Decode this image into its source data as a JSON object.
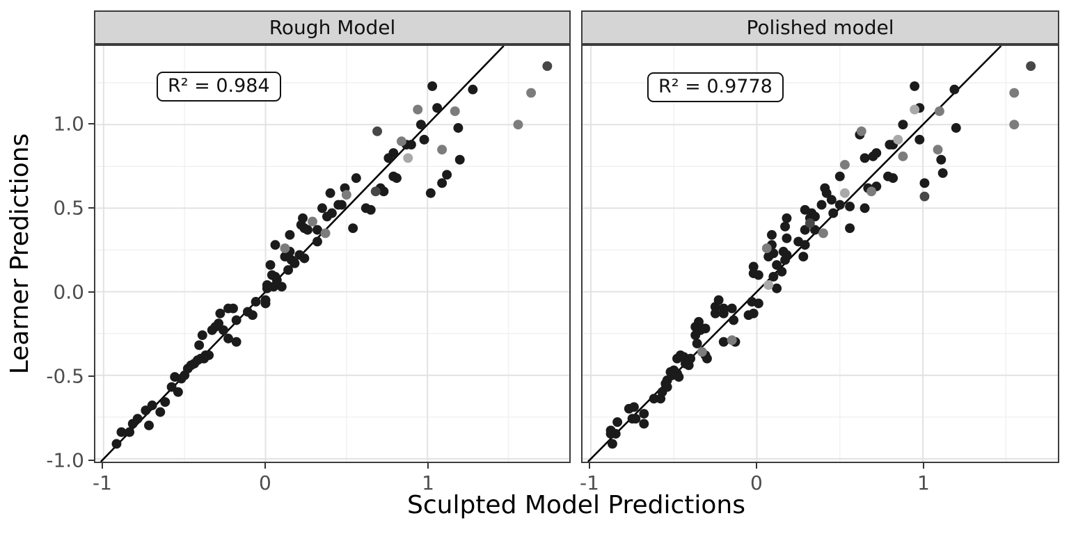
{
  "figure": {
    "x_axis_title": "Sculpted Model Predictions",
    "y_axis_title": "Learner Predictions"
  },
  "chart_data": [
    {
      "type": "scatter",
      "facet": "Rough Model",
      "annotation": "R² = 0.984",
      "xlabel": "Sculpted Model Predictions",
      "ylabel": "Learner Predictions",
      "xlim": [
        -1.051,
        1.876
      ],
      "ylim": [
        -1.017,
        1.471
      ],
      "x_tick_values": [
        -1,
        0,
        1
      ],
      "x_tick_labels": [
        "-1",
        "0",
        "1"
      ],
      "y_tick_values": [
        -1.0,
        -0.5,
        0.0,
        0.5,
        1.0
      ],
      "y_tick_labels": [
        "-1.0",
        "-0.5",
        "0.0",
        "0.5",
        "1.0"
      ],
      "x_minor": [
        -0.5,
        0.5,
        1.5
      ],
      "y_minor": [
        -0.75,
        -0.25,
        0.25,
        0.75,
        1.25
      ],
      "identity_line": {
        "slope": 1,
        "intercept": 0
      },
      "grid": true,
      "series": [
        {
          "name": "black-points",
          "color": "#1b1b1b",
          "points": [
            [
              -0.92,
              -0.91
            ],
            [
              -0.89,
              -0.84
            ],
            [
              -0.84,
              -0.84
            ],
            [
              -0.82,
              -0.79
            ],
            [
              -0.79,
              -0.76
            ],
            [
              -0.72,
              -0.8
            ],
            [
              -0.74,
              -0.71
            ],
            [
              -0.7,
              -0.68
            ],
            [
              -0.65,
              -0.72
            ],
            [
              -0.62,
              -0.66
            ],
            [
              -0.58,
              -0.57
            ],
            [
              -0.56,
              -0.51
            ],
            [
              -0.54,
              -0.6
            ],
            [
              -0.52,
              -0.52
            ],
            [
              -0.5,
              -0.5
            ],
            [
              -0.48,
              -0.46
            ],
            [
              -0.46,
              -0.44
            ],
            [
              -0.44,
              -0.43
            ],
            [
              -0.42,
              -0.41
            ],
            [
              -0.4,
              -0.4
            ],
            [
              -0.38,
              -0.4
            ],
            [
              -0.37,
              -0.38
            ],
            [
              -0.35,
              -0.38
            ],
            [
              -0.41,
              -0.32
            ],
            [
              -0.39,
              -0.26
            ],
            [
              -0.33,
              -0.23
            ],
            [
              -0.31,
              -0.21
            ],
            [
              -0.29,
              -0.19
            ],
            [
              -0.28,
              -0.13
            ],
            [
              -0.26,
              -0.23
            ],
            [
              -0.23,
              -0.28
            ],
            [
              -0.18,
              -0.3
            ],
            [
              -0.23,
              -0.1
            ],
            [
              -0.2,
              -0.1
            ],
            [
              -0.18,
              -0.17
            ],
            [
              -0.11,
              -0.12
            ],
            [
              -0.08,
              -0.14
            ],
            [
              -0.06,
              -0.06
            ],
            [
              0.0,
              -0.07
            ],
            [
              0.0,
              -0.05
            ],
            [
              0.01,
              0.02
            ],
            [
              0.01,
              0.04
            ],
            [
              0.05,
              0.03
            ],
            [
              0.1,
              0.03
            ],
            [
              0.04,
              0.1
            ],
            [
              0.06,
              0.09
            ],
            [
              0.07,
              0.07
            ],
            [
              0.03,
              0.16
            ],
            [
              0.14,
              0.13
            ],
            [
              0.18,
              0.17
            ],
            [
              0.16,
              0.19
            ],
            [
              0.15,
              0.24
            ],
            [
              0.12,
              0.21
            ],
            [
              0.21,
              0.22
            ],
            [
              0.24,
              0.2
            ],
            [
              0.06,
              0.28
            ],
            [
              0.15,
              0.34
            ],
            [
              0.22,
              0.4
            ],
            [
              0.23,
              0.44
            ],
            [
              0.24,
              0.38
            ],
            [
              0.26,
              0.37
            ],
            [
              0.32,
              0.37
            ],
            [
              0.32,
              0.3
            ],
            [
              0.35,
              0.5
            ],
            [
              0.38,
              0.45
            ],
            [
              0.41,
              0.47
            ],
            [
              0.45,
              0.52
            ],
            [
              0.47,
              0.52
            ],
            [
              0.4,
              0.59
            ],
            [
              0.49,
              0.62
            ],
            [
              0.54,
              0.38
            ],
            [
              0.56,
              0.68
            ],
            [
              0.62,
              0.5
            ],
            [
              0.65,
              0.49
            ],
            [
              0.71,
              0.62
            ],
            [
              0.73,
              0.6
            ],
            [
              0.79,
              0.69
            ],
            [
              0.81,
              0.68
            ],
            [
              0.76,
              0.8
            ],
            [
              0.79,
              0.83
            ],
            [
              0.87,
              0.88
            ],
            [
              0.9,
              0.88
            ],
            [
              0.96,
              1.0
            ],
            [
              0.98,
              0.91
            ],
            [
              1.02,
              0.59
            ],
            [
              1.03,
              1.23
            ],
            [
              1.06,
              1.1
            ],
            [
              1.09,
              0.65
            ],
            [
              1.12,
              0.7
            ],
            [
              1.19,
              0.98
            ],
            [
              1.2,
              0.79
            ],
            [
              1.28,
              1.21
            ]
          ]
        },
        {
          "name": "gray-points",
          "color": "#7c7c7c",
          "points": [
            [
              0.12,
              0.26
            ],
            [
              0.29,
              0.42
            ],
            [
              0.37,
              0.35
            ],
            [
              0.5,
              0.58
            ],
            [
              0.84,
              0.9
            ],
            [
              0.94,
              1.09
            ],
            [
              1.09,
              0.85
            ],
            [
              1.17,
              1.08
            ],
            [
              1.56,
              1.0
            ],
            [
              1.64,
              1.19
            ]
          ]
        },
        {
          "name": "dark-gray-points",
          "color": "#474747",
          "points": [
            [
              0.68,
              0.6
            ],
            [
              0.69,
              0.96
            ],
            [
              1.74,
              1.35
            ]
          ]
        },
        {
          "name": "light-gray-points",
          "color": "#a9a9a9",
          "points": [
            [
              0.88,
              0.8
            ]
          ]
        }
      ]
    },
    {
      "type": "scatter",
      "facet": "Polished model",
      "annotation": "R² = 0.9778",
      "xlabel": "Sculpted Model Predictions",
      "ylabel": "Learner Predictions",
      "xlim": [
        -1.05,
        1.813
      ],
      "ylim": [
        -1.017,
        1.471
      ],
      "x_tick_values": [
        -1,
        0,
        1
      ],
      "x_tick_labels": [
        "-1",
        "0",
        "1"
      ],
      "y_tick_values": [
        -1.0,
        -0.5,
        0.0,
        0.5,
        1.0
      ],
      "y_tick_labels": [
        "-1.0",
        "-0.5",
        "0.0",
        "0.5",
        "1.0"
      ],
      "x_minor": [
        -0.5,
        0.5,
        1.5
      ],
      "y_minor": [
        -0.75,
        -0.25,
        0.25,
        0.75,
        1.25
      ],
      "identity_line": {
        "slope": 1,
        "intercept": 0
      },
      "grid": true,
      "series": [
        {
          "name": "black-points",
          "color": "#1b1b1b",
          "points": [
            [
              -0.87,
              -0.91
            ],
            [
              -0.88,
              -0.85
            ],
            [
              -0.88,
              -0.83
            ],
            [
              -0.85,
              -0.85
            ],
            [
              -0.84,
              -0.78
            ],
            [
              -0.77,
              -0.7
            ],
            [
              -0.74,
              -0.69
            ],
            [
              -0.75,
              -0.76
            ],
            [
              -0.73,
              -0.76
            ],
            [
              -0.68,
              -0.73
            ],
            [
              -0.68,
              -0.79
            ],
            [
              -0.62,
              -0.64
            ],
            [
              -0.58,
              -0.64
            ],
            [
              -0.57,
              -0.6
            ],
            [
              -0.55,
              -0.55
            ],
            [
              -0.54,
              -0.53
            ],
            [
              -0.54,
              -0.57
            ],
            [
              -0.52,
              -0.48
            ],
            [
              -0.5,
              -0.47
            ],
            [
              -0.51,
              -0.5
            ],
            [
              -0.48,
              -0.49
            ],
            [
              -0.47,
              -0.51
            ],
            [
              -0.48,
              -0.4
            ],
            [
              -0.46,
              -0.38
            ],
            [
              -0.44,
              -0.39
            ],
            [
              -0.43,
              -0.43
            ],
            [
              -0.41,
              -0.44
            ],
            [
              -0.4,
              -0.4
            ],
            [
              -0.37,
              -0.21
            ],
            [
              -0.37,
              -0.26
            ],
            [
              -0.35,
              -0.18
            ],
            [
              -0.34,
              -0.23
            ],
            [
              -0.33,
              -0.22
            ],
            [
              -0.31,
              -0.22
            ],
            [
              -0.36,
              -0.31
            ],
            [
              -0.31,
              -0.38
            ],
            [
              -0.3,
              -0.4
            ],
            [
              -0.25,
              -0.09
            ],
            [
              -0.25,
              -0.13
            ],
            [
              -0.23,
              -0.05
            ],
            [
              -0.2,
              -0.1
            ],
            [
              -0.2,
              -0.13
            ],
            [
              -0.15,
              -0.1
            ],
            [
              -0.14,
              -0.17
            ],
            [
              -0.2,
              -0.3
            ],
            [
              -0.13,
              -0.3
            ],
            [
              -0.05,
              -0.14
            ],
            [
              -0.03,
              -0.06
            ],
            [
              0.01,
              -0.07
            ],
            [
              -0.02,
              -0.13
            ],
            [
              -0.02,
              0.15
            ],
            [
              -0.02,
              0.11
            ],
            [
              0.01,
              0.1
            ],
            [
              0.1,
              0.09
            ],
            [
              0.12,
              0.02
            ],
            [
              0.07,
              0.21
            ],
            [
              0.1,
              0.23
            ],
            [
              0.16,
              0.24
            ],
            [
              0.18,
              0.22
            ],
            [
              0.17,
              0.19
            ],
            [
              0.12,
              0.16
            ],
            [
              0.15,
              0.12
            ],
            [
              0.09,
              0.34
            ],
            [
              0.09,
              0.28
            ],
            [
              0.18,
              0.44
            ],
            [
              0.17,
              0.39
            ],
            [
              0.18,
              0.32
            ],
            [
              0.25,
              0.3
            ],
            [
              0.29,
              0.37
            ],
            [
              0.29,
              0.28
            ],
            [
              0.28,
              0.21
            ],
            [
              0.29,
              0.49
            ],
            [
              0.32,
              0.44
            ],
            [
              0.33,
              0.47
            ],
            [
              0.35,
              0.45
            ],
            [
              0.35,
              0.37
            ],
            [
              0.39,
              0.52
            ],
            [
              0.41,
              0.62
            ],
            [
              0.42,
              0.59
            ],
            [
              0.45,
              0.55
            ],
            [
              0.46,
              0.47
            ],
            [
              0.5,
              0.52
            ],
            [
              0.5,
              0.69
            ],
            [
              0.56,
              0.51
            ],
            [
              0.56,
              0.38
            ],
            [
              0.65,
              0.5
            ],
            [
              0.67,
              0.62
            ],
            [
              0.72,
              0.63
            ],
            [
              0.79,
              0.69
            ],
            [
              0.82,
              0.68
            ],
            [
              1.01,
              0.65
            ],
            [
              0.62,
              0.94
            ],
            [
              0.65,
              0.8
            ],
            [
              0.95,
              1.23
            ],
            [
              1.19,
              1.21
            ],
            [
              0.98,
              1.1
            ],
            [
              0.88,
              1.0
            ],
            [
              1.2,
              0.98
            ],
            [
              0.98,
              0.91
            ],
            [
              0.8,
              0.88
            ],
            [
              0.82,
              0.88
            ],
            [
              0.72,
              0.83
            ],
            [
              0.7,
              0.81
            ],
            [
              1.11,
              0.79
            ],
            [
              1.12,
              0.71
            ]
          ]
        },
        {
          "name": "gray-points",
          "color": "#7c7c7c",
          "points": [
            [
              -0.33,
              -0.36
            ],
            [
              -0.15,
              -0.29
            ],
            [
              0.06,
              0.26
            ],
            [
              0.4,
              0.35
            ],
            [
              0.63,
              0.96
            ],
            [
              0.53,
              0.76
            ],
            [
              0.69,
              0.6
            ],
            [
              0.88,
              0.81
            ],
            [
              1.09,
              0.85
            ],
            [
              1.1,
              1.08
            ],
            [
              1.55,
              1.19
            ],
            [
              1.55,
              1.0
            ]
          ]
        },
        {
          "name": "dark-gray-points",
          "color": "#474747",
          "points": [
            [
              0.32,
              0.41
            ],
            [
              1.01,
              0.57
            ],
            [
              1.65,
              1.35
            ]
          ]
        },
        {
          "name": "light-gray-points",
          "color": "#a9a9a9",
          "points": [
            [
              0.07,
              0.04
            ],
            [
              0.53,
              0.59
            ],
            [
              0.95,
              1.09
            ],
            [
              0.85,
              0.91
            ]
          ]
        }
      ]
    }
  ]
}
